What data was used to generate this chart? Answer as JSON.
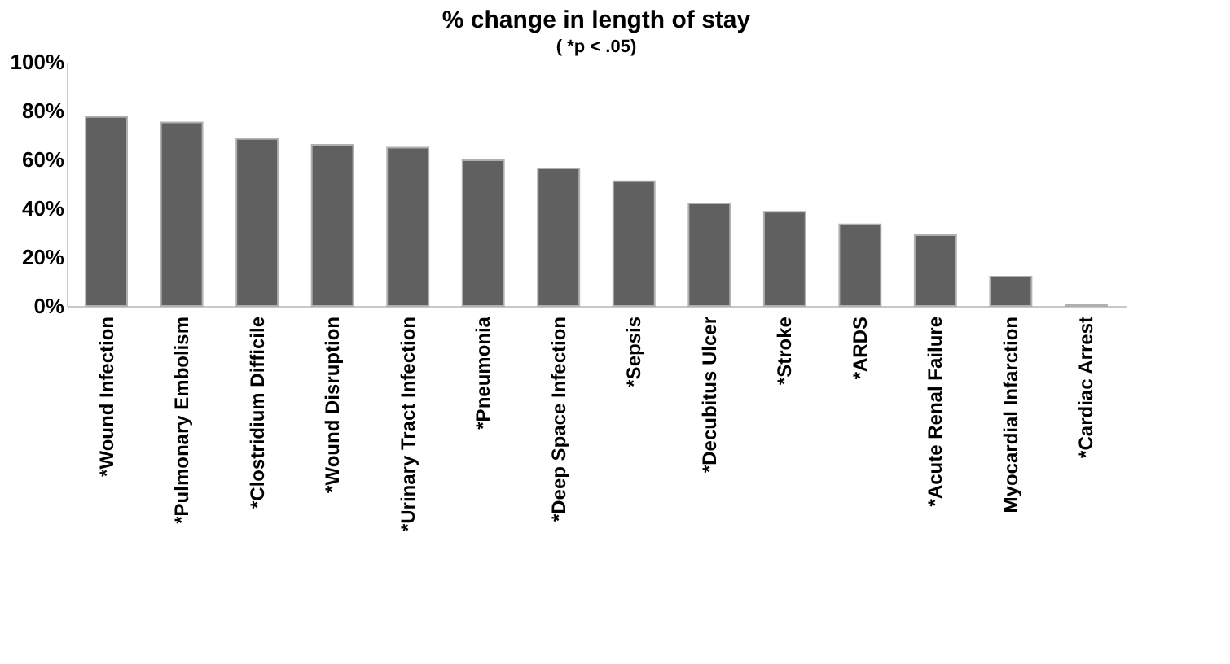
{
  "chart_data": {
    "type": "bar",
    "title": "% change in length of stay",
    "subtitle": "( *p < .05)",
    "categories": [
      "*Wound Infection",
      "*Pulmonary Embolism",
      "*Clostridium Difficile",
      "*Wound Disruption",
      "*Urinary Tract Infection",
      "*Pneumonia",
      "*Deep Space Infection",
      "*Sepsis",
      "*Decubitus Ulcer",
      "*Stroke",
      "*ARDS",
      "*Acute Renal Failure",
      "Myocardial Infarction",
      "*Cardiac Arrest"
    ],
    "values": [
      77.4,
      75.2,
      68.4,
      66,
      64.8,
      59.7,
      56.3,
      51.1,
      42,
      38.6,
      33.4,
      29,
      12,
      0.5
    ],
    "color": "#606060",
    "ylim": [
      0,
      100
    ],
    "yticks": [
      {
        "value": 0,
        "label": "0%"
      },
      {
        "value": 20,
        "label": "20%"
      },
      {
        "value": 40,
        "label": "40%"
      },
      {
        "value": 60,
        "label": "60%"
      },
      {
        "value": 80,
        "label": "80%"
      },
      {
        "value": 100,
        "label": "100%"
      }
    ],
    "grid": false
  }
}
